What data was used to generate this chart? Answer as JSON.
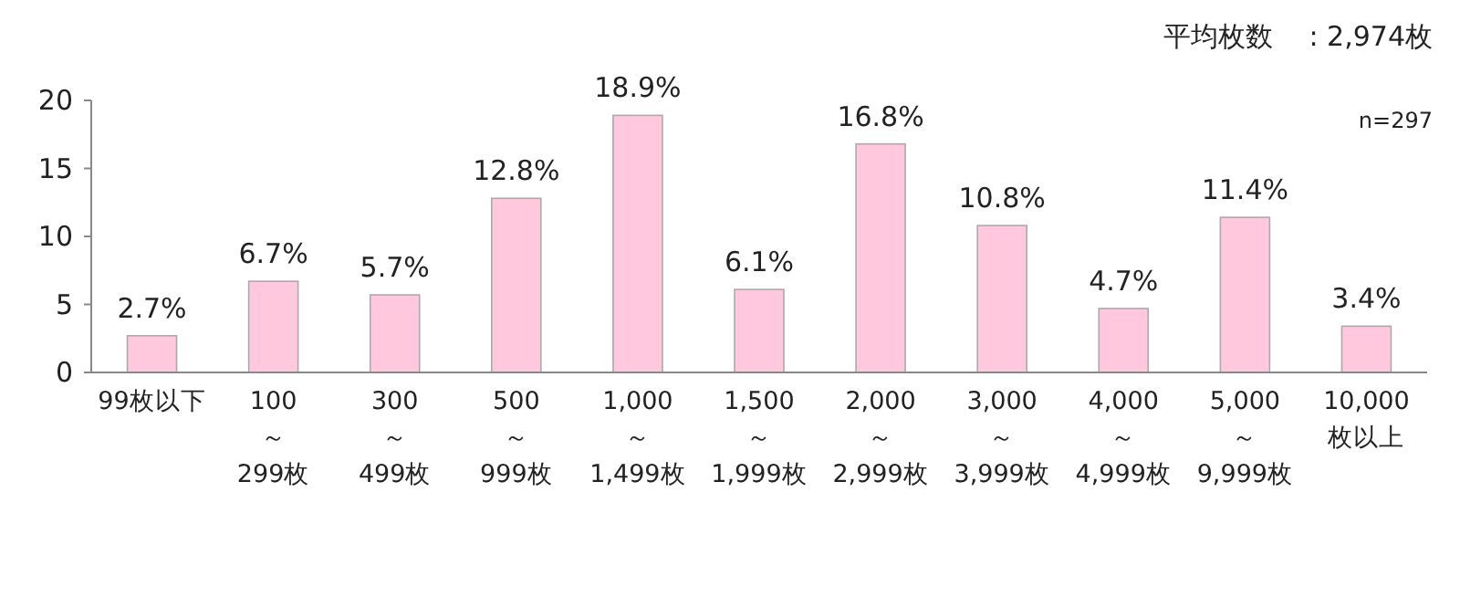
{
  "chart_data": {
    "type": "bar",
    "categories": [
      "99枚以下",
      "100\n～\n299枚",
      "300\n～\n499枚",
      "500\n～\n999枚",
      "1,000\n～\n1,499枚",
      "1,500\n～\n1,999枚",
      "2,000\n～\n2,999枚",
      "3,000\n～\n3,999枚",
      "4,000\n～\n4,999枚",
      "5,000\n～\n9,999枚",
      "10,000枚以上"
    ],
    "values": [
      2.7,
      6.7,
      5.7,
      12.8,
      18.9,
      6.1,
      16.8,
      10.8,
      4.7,
      11.4,
      3.4
    ],
    "value_labels": [
      "2.7%",
      "6.7%",
      "5.7%",
      "12.8%",
      "18.9%",
      "6.1%",
      "16.8%",
      "10.8%",
      "4.7%",
      "11.4%",
      "3.4%"
    ],
    "color": "#ffc8dc",
    "ylim": [
      0,
      20
    ],
    "yticks": [
      0,
      5,
      10,
      15,
      20
    ],
    "annotations": [
      "平均枚数　 : 2,974枚",
      "n=297"
    ]
  }
}
